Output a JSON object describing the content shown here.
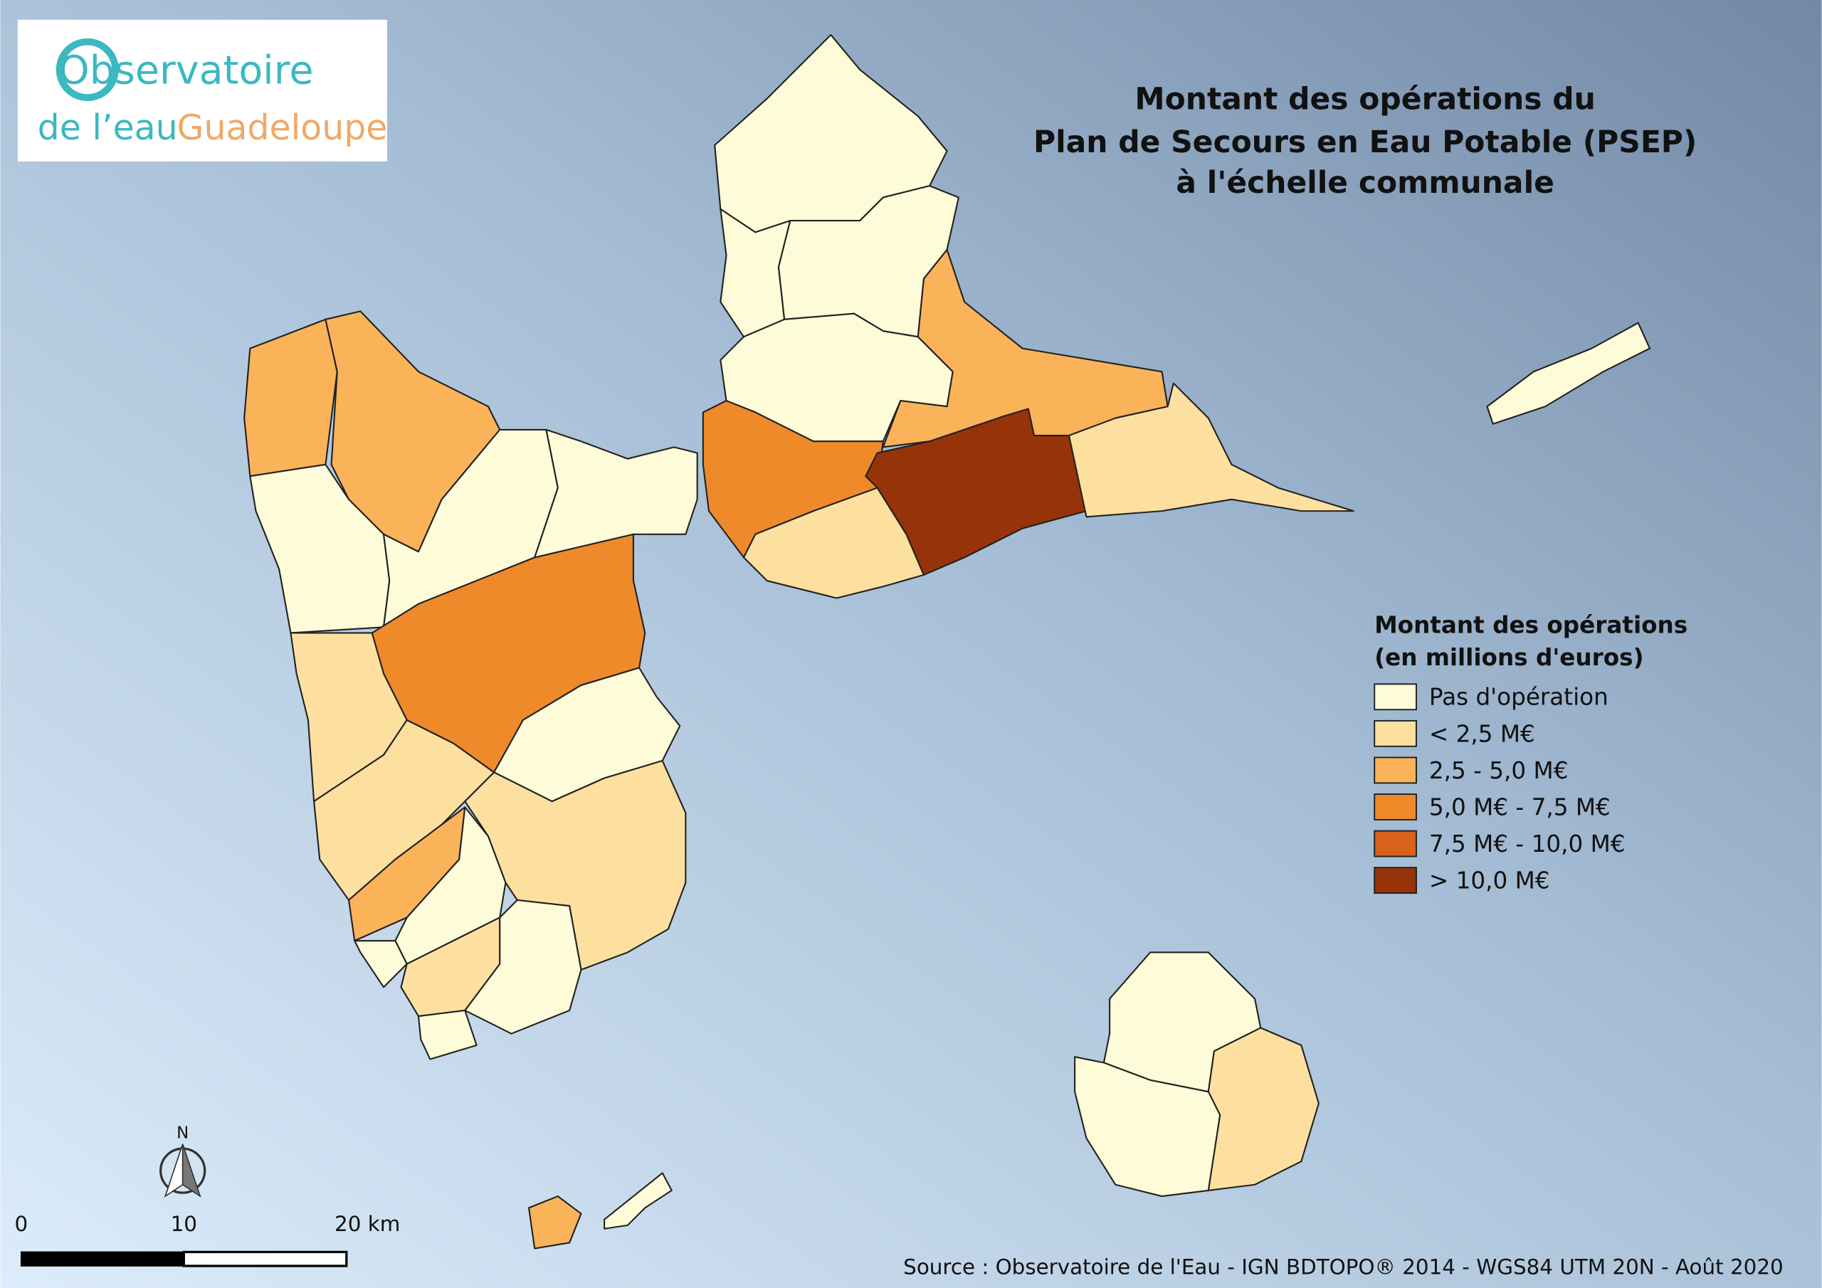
{
  "logo": {
    "line1": "Observatoire",
    "line2a": "de l’eau",
    "line2b": "Guadeloupe"
  },
  "title": [
    "Montant des opérations du",
    "Plan de Secours en Eau Potable (PSEP)",
    "à l'échelle communale"
  ],
  "legend": {
    "title": [
      "Montant des opérations",
      "(en millions d'euros)"
    ],
    "items": [
      {
        "label": "Pas d'opération",
        "color": "#fefbd8"
      },
      {
        "label": "< 2,5 M€",
        "color": "#fde0a0"
      },
      {
        "label": "2,5 - 5,0 M€",
        "color": "#fbb35a"
      },
      {
        "label": "5,0 M€ - 7,5 M€",
        "color": "#ef8a2b"
      },
      {
        "label": "7,5 M€ - 10,0 M€",
        "color": "#d9621a"
      },
      {
        "label": "> 10,0 M€",
        "color": "#973308"
      }
    ]
  },
  "north": "N",
  "scale": {
    "labels": [
      "0",
      "10",
      "20 km"
    ]
  },
  "source": "Source : Observatoire de l'Eau - IGN BDTOPO® 2014 - WGS84 UTM 20N - Août 2020"
}
